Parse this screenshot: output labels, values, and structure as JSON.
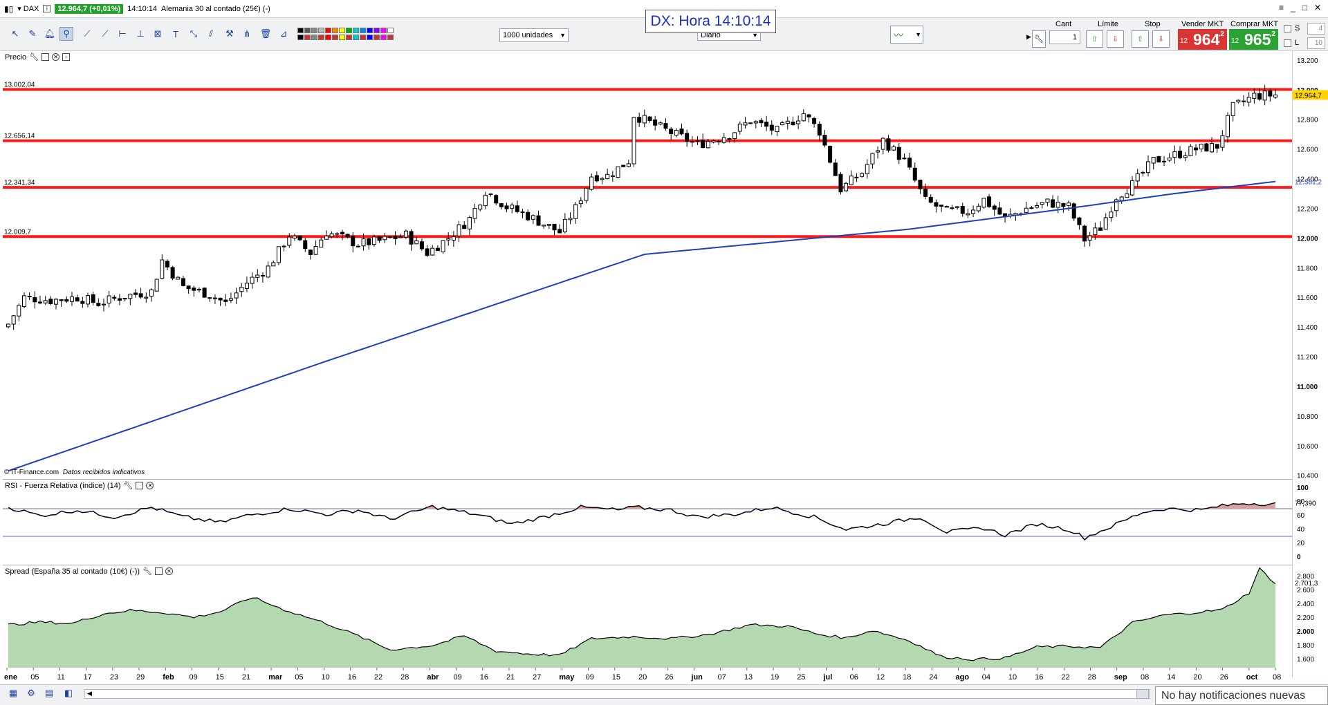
{
  "titlebar": {
    "symbol": "DAX",
    "price_badge": "12.964,7 (+0,01%)",
    "time": "14:10:14",
    "instrument": "Alemania 30 al contado (25€) (-)"
  },
  "clock": {
    "text": "DX: Hora 14:10:14"
  },
  "toolbar": {
    "units_select": "1000 unidades",
    "period_select": "Diario",
    "cant_label": "Cant",
    "limite_label": "Límite",
    "stop_label": "Stop",
    "vender_label": "Vender MKT",
    "comprar_label": "Comprar MKT",
    "cant_value": "1",
    "sell_small": "12",
    "sell_big": "964",
    "sell_sup": ",2",
    "buy_small": "12",
    "buy_big": "965",
    "buy_sup": ",2",
    "s_label": "S",
    "l_label": "L",
    "s_value": "4",
    "l_value": "10",
    "colors": {
      "sell": "#d93535",
      "buy": "#2aa334"
    }
  },
  "price_panel": {
    "title": "Precio",
    "footer_copy": "© IT-Finance.com",
    "footer_note": "Datos recibidos indicativos",
    "current_label": "12.964,7",
    "ma_label": "12.381,2",
    "y_ticks": [
      "13.200",
      "13.000",
      "12.800",
      "12.600",
      "12.400",
      "12.200",
      "12.000",
      "11.800",
      "11.600",
      "11.400",
      "11.200",
      "11.000",
      "10.800",
      "10.600",
      "10.400"
    ],
    "y_ticks_vals": [
      13200,
      13000,
      12800,
      12600,
      12400,
      12200,
      12000,
      11800,
      11600,
      11400,
      11200,
      11000,
      10800,
      10600,
      10400
    ],
    "ylim": [
      10380,
      13260
    ],
    "levels": [
      {
        "label": "13.002,04",
        "value": 13002.04
      },
      {
        "label": "12.656,14",
        "value": 12656.14
      },
      {
        "label": "12.341,34",
        "value": 12341.34
      },
      {
        "label": "12.009,7",
        "value": 12009.7
      }
    ],
    "colors": {
      "level": "#ff1a1a",
      "ma": "#1f3fbf",
      "candle": "#000000"
    }
  },
  "rsi_panel": {
    "title": "RSI - Fuerza Relativa (índice) (14)",
    "current_label": "77,390",
    "y_ticks": [
      "100",
      "80",
      "60",
      "40",
      "20",
      "0"
    ],
    "y_ticks_vals": [
      100,
      80,
      60,
      40,
      20,
      0
    ],
    "bands": [
      70,
      30
    ]
  },
  "spread_panel": {
    "title": "Spread (España 35 al contado (10€) (-))",
    "current_label": "2.701,3",
    "y_ticks": [
      "2.800",
      "2.600",
      "2.400",
      "2.200",
      "2.000",
      "1.800",
      "1.600"
    ],
    "y_ticks_vals": [
      2800,
      2600,
      2400,
      2200,
      2000,
      1800,
      1600
    ],
    "ylim": [
      1480,
      2960
    ],
    "colors": {
      "fill": "#b4d8b0",
      "line": "#000000"
    }
  },
  "x_axis": {
    "labels": [
      "ene",
      "05",
      "11",
      "17",
      "23",
      "29",
      "feb",
      "09",
      "15",
      "21",
      "mar",
      "05",
      "10",
      "16",
      "22",
      "28",
      "abr",
      "09",
      "16",
      "21",
      "27",
      "may",
      "09",
      "15",
      "20",
      "26",
      "jun",
      "07",
      "13",
      "19",
      "25",
      "jul",
      "06",
      "12",
      "18",
      "24",
      "ago",
      "04",
      "10",
      "16",
      "22",
      "28",
      "sep",
      "08",
      "14",
      "20",
      "26",
      "oct",
      "08"
    ],
    "bold_labels": [
      "ene",
      "feb",
      "mar",
      "abr",
      "may",
      "jun",
      "jul",
      "ago",
      "sep",
      "oct"
    ]
  },
  "status": {
    "notifications": "No hay notificaciones nuevas"
  },
  "chart_data": {
    "type": "candlestick",
    "title": "",
    "ylim": [
      10380,
      13260
    ],
    "days": 240,
    "anchors_close": [
      [
        0,
        11420
      ],
      [
        3,
        11600
      ],
      [
        8,
        11580
      ],
      [
        13,
        11600
      ],
      [
        17,
        11560
      ],
      [
        22,
        11610
      ],
      [
        27,
        11640
      ],
      [
        29,
        11850
      ],
      [
        33,
        11670
      ],
      [
        38,
        11620
      ],
      [
        41,
        11560
      ],
      [
        45,
        11700
      ],
      [
        49,
        11800
      ],
      [
        53,
        12020
      ],
      [
        57,
        11900
      ],
      [
        60,
        12040
      ],
      [
        66,
        11960
      ],
      [
        70,
        11980
      ],
      [
        75,
        12020
      ],
      [
        79,
        11900
      ],
      [
        83,
        12000
      ],
      [
        87,
        12130
      ],
      [
        90,
        12320
      ],
      [
        94,
        12210
      ],
      [
        98,
        12150
      ],
      [
        104,
        12040
      ],
      [
        107,
        12200
      ],
      [
        110,
        12420
      ],
      [
        113,
        12420
      ],
      [
        117,
        12520
      ],
      [
        118,
        12830
      ],
      [
        122,
        12760
      ],
      [
        130,
        12630
      ],
      [
        136,
        12700
      ],
      [
        140,
        12790
      ],
      [
        145,
        12720
      ],
      [
        150,
        12840
      ],
      [
        153,
        12720
      ],
      [
        157,
        12330
      ],
      [
        161,
        12440
      ],
      [
        165,
        12660
      ],
      [
        169,
        12520
      ],
      [
        173,
        12250
      ],
      [
        177,
        12180
      ],
      [
        181,
        12180
      ],
      [
        184,
        12260
      ],
      [
        188,
        12130
      ],
      [
        192,
        12200
      ],
      [
        196,
        12240
      ],
      [
        200,
        12210
      ],
      [
        203,
        11990
      ],
      [
        206,
        12070
      ],
      [
        209,
        12280
      ],
      [
        212,
        12360
      ],
      [
        216,
        12520
      ],
      [
        220,
        12560
      ],
      [
        224,
        12600
      ],
      [
        228,
        12620
      ],
      [
        231,
        12880
      ],
      [
        235,
        12960
      ],
      [
        239,
        12965
      ]
    ],
    "ma200": [
      [
        0,
        10430
      ],
      [
        60,
        11170
      ],
      [
        120,
        11890
      ],
      [
        170,
        12060
      ],
      [
        200,
        12200
      ],
      [
        220,
        12300
      ],
      [
        239,
        12381
      ]
    ],
    "rsi_anchors": [
      [
        0,
        72
      ],
      [
        6,
        60
      ],
      [
        13,
        68
      ],
      [
        20,
        58
      ],
      [
        27,
        72
      ],
      [
        33,
        58
      ],
      [
        40,
        50
      ],
      [
        45,
        60
      ],
      [
        53,
        70
      ],
      [
        60,
        62
      ],
      [
        66,
        68
      ],
      [
        72,
        55
      ],
      [
        80,
        73
      ],
      [
        88,
        62
      ],
      [
        95,
        48
      ],
      [
        101,
        58
      ],
      [
        108,
        72
      ],
      [
        115,
        68
      ],
      [
        118,
        72
      ],
      [
        125,
        68
      ],
      [
        130,
        58
      ],
      [
        137,
        62
      ],
      [
        144,
        72
      ],
      [
        152,
        58
      ],
      [
        158,
        40
      ],
      [
        165,
        48
      ],
      [
        172,
        58
      ],
      [
        177,
        36
      ],
      [
        184,
        42
      ],
      [
        188,
        32
      ],
      [
        194,
        48
      ],
      [
        200,
        40
      ],
      [
        203,
        28
      ],
      [
        208,
        44
      ],
      [
        214,
        65
      ],
      [
        218,
        70
      ],
      [
        225,
        68
      ],
      [
        228,
        73
      ],
      [
        233,
        78
      ],
      [
        239,
        77
      ]
    ],
    "spread_anchors": [
      [
        0,
        2100
      ],
      [
        6,
        2140
      ],
      [
        12,
        2120
      ],
      [
        18,
        2260
      ],
      [
        23,
        2310
      ],
      [
        29,
        2280
      ],
      [
        35,
        2210
      ],
      [
        40,
        2290
      ],
      [
        46,
        2500
      ],
      [
        52,
        2320
      ],
      [
        60,
        2120
      ],
      [
        66,
        1940
      ],
      [
        72,
        1740
      ],
      [
        80,
        1800
      ],
      [
        86,
        1940
      ],
      [
        92,
        1720
      ],
      [
        98,
        1680
      ],
      [
        104,
        1660
      ],
      [
        110,
        1900
      ],
      [
        118,
        1930
      ],
      [
        125,
        1900
      ],
      [
        132,
        1960
      ],
      [
        140,
        2100
      ],
      [
        147,
        2080
      ],
      [
        153,
        1960
      ],
      [
        158,
        1910
      ],
      [
        163,
        2020
      ],
      [
        170,
        1870
      ],
      [
        176,
        1640
      ],
      [
        182,
        1600
      ],
      [
        188,
        1620
      ],
      [
        194,
        1780
      ],
      [
        200,
        1790
      ],
      [
        206,
        1770
      ],
      [
        212,
        2130
      ],
      [
        218,
        2240
      ],
      [
        224,
        2280
      ],
      [
        229,
        2320
      ],
      [
        234,
        2560
      ],
      [
        236,
        2910
      ],
      [
        239,
        2701
      ]
    ]
  }
}
